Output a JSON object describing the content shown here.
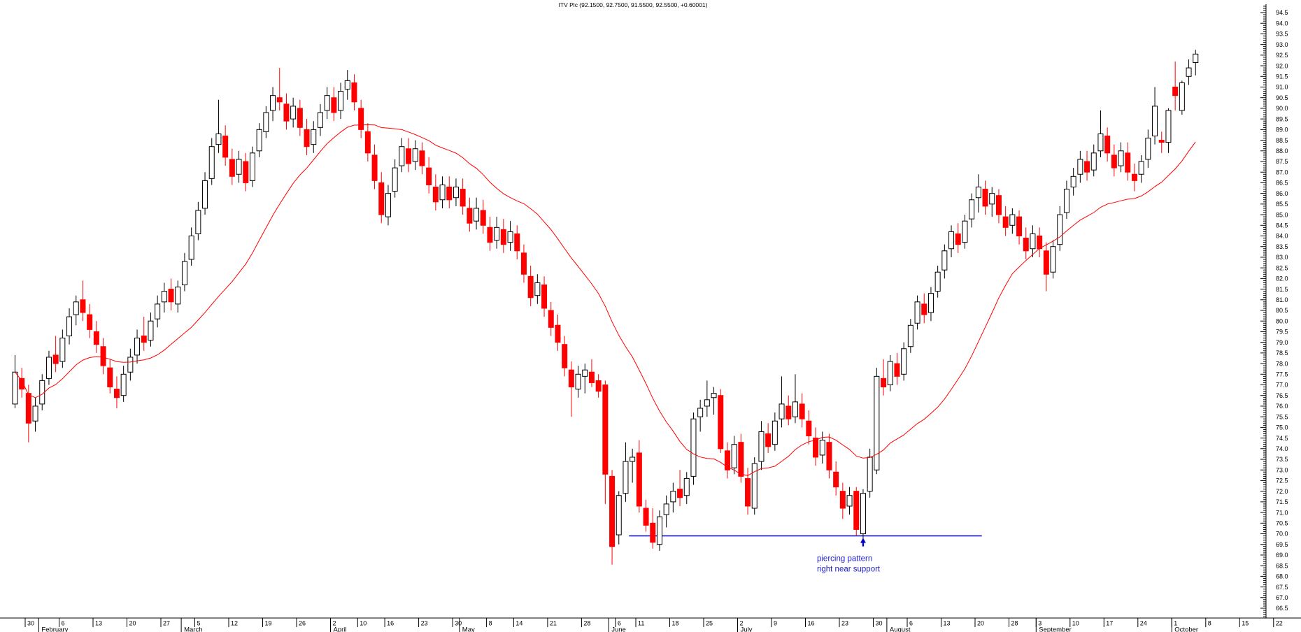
{
  "colors": {
    "background": "#ffffff",
    "up_candle_fill": "#ffffff",
    "up_candle_outline": "#000000",
    "down_candle": "#ff0000",
    "ma_line": "#ff0000",
    "support_line": "#0000c8",
    "annotation_text": "#2222cc",
    "axis": "#000000"
  },
  "chart_data": {
    "type": "candlestick",
    "title": "ITV Plc (92.1500, 92.7500, 91.5500, 92.5500, +0.60001)",
    "instrument": "ITV Plc",
    "last_quote": {
      "open": 92.15,
      "high": 92.75,
      "low": 91.55,
      "close": 92.55,
      "change": "+0.60001"
    },
    "grid": false,
    "y_axis": {
      "position": "right",
      "min": 66.5,
      "max": 94.5,
      "step": 0.5,
      "minor_step": 0.1
    },
    "x_axis": {
      "week_ticks": [
        {
          "label": "30",
          "index": 2
        },
        {
          "label": "6",
          "index": 7
        },
        {
          "label": "13",
          "index": 12
        },
        {
          "label": "20",
          "index": 17
        },
        {
          "label": "27",
          "index": 22
        },
        {
          "label": "5",
          "index": 27
        },
        {
          "label": "12",
          "index": 32
        },
        {
          "label": "19",
          "index": 37
        },
        {
          "label": "26",
          "index": 42
        },
        {
          "label": "2",
          "index": 47
        },
        {
          "label": "10",
          "index": 51
        },
        {
          "label": "16",
          "index": 55
        },
        {
          "label": "23",
          "index": 60
        },
        {
          "label": "30",
          "index": 65
        },
        {
          "label": "8",
          "index": 70
        },
        {
          "label": "14",
          "index": 74
        },
        {
          "label": "21",
          "index": 79
        },
        {
          "label": "28",
          "index": 84
        },
        {
          "label": "6",
          "index": 89
        },
        {
          "label": "11",
          "index": 92
        },
        {
          "label": "18",
          "index": 97
        },
        {
          "label": "25",
          "index": 102
        },
        {
          "label": "2",
          "index": 107
        },
        {
          "label": "9",
          "index": 112
        },
        {
          "label": "16",
          "index": 117
        },
        {
          "label": "23",
          "index": 122
        },
        {
          "label": "30",
          "index": 127
        },
        {
          "label": "6",
          "index": 132
        },
        {
          "label": "13",
          "index": 137
        },
        {
          "label": "20",
          "index": 142
        },
        {
          "label": "28",
          "index": 147
        },
        {
          "label": "3",
          "index": 151
        },
        {
          "label": "10",
          "index": 156
        },
        {
          "label": "17",
          "index": 161
        },
        {
          "label": "24",
          "index": 166
        },
        {
          "label": "1",
          "index": 171
        },
        {
          "label": "8",
          "index": 176
        },
        {
          "label": "15",
          "index": 181
        },
        {
          "label": "22",
          "index": 186
        }
      ],
      "months": [
        {
          "label": "February",
          "index": 4
        },
        {
          "label": "March",
          "index": 25
        },
        {
          "label": "April",
          "index": 47
        },
        {
          "label": "May",
          "index": 66
        },
        {
          "label": "June",
          "index": 88
        },
        {
          "label": "July",
          "index": 107
        },
        {
          "label": "August",
          "index": 129
        },
        {
          "label": "September",
          "index": 151
        },
        {
          "label": "October",
          "index": 171
        }
      ]
    },
    "series": [
      {
        "name": "ITV Plc daily OHLC",
        "type": "candlestick"
      },
      {
        "name": "moving average",
        "type": "line",
        "derived": "sma",
        "period": 21,
        "color": "#ff0000"
      }
    ],
    "annotations": {
      "support_line": {
        "price": 69.9,
        "start_index": 91,
        "end_index": 143,
        "color": "#0000c8"
      },
      "arrow": {
        "index": 125,
        "direction": "up",
        "color": "#0000c8"
      },
      "text": [
        "piercing pattern",
        "right near support"
      ],
      "text_start_index": 118.7
    },
    "candles": [
      [
        76.1,
        78.4,
        75.9,
        77.6
      ],
      [
        77.3,
        77.8,
        76.4,
        76.8
      ],
      [
        76.6,
        77.0,
        74.3,
        75.2
      ],
      [
        75.3,
        76.4,
        74.8,
        76.0
      ],
      [
        76.1,
        77.5,
        75.8,
        77.2
      ],
      [
        77.3,
        78.6,
        77.0,
        78.3
      ],
      [
        78.4,
        79.3,
        77.6,
        78.0
      ],
      [
        78.1,
        79.6,
        77.8,
        79.2
      ],
      [
        79.3,
        80.6,
        78.9,
        80.2
      ],
      [
        80.3,
        81.2,
        79.8,
        80.9
      ],
      [
        81.0,
        81.9,
        80.0,
        80.4
      ],
      [
        80.3,
        80.8,
        79.2,
        79.6
      ],
      [
        79.5,
        80.0,
        78.5,
        78.9
      ],
      [
        78.8,
        79.2,
        77.5,
        77.9
      ],
      [
        77.8,
        78.2,
        76.6,
        76.9
      ],
      [
        76.8,
        77.4,
        75.9,
        76.4
      ],
      [
        76.5,
        77.9,
        76.2,
        77.5
      ],
      [
        77.6,
        78.7,
        77.2,
        78.3
      ],
      [
        78.4,
        79.6,
        78.0,
        79.2
      ],
      [
        79.3,
        80.2,
        78.6,
        79.0
      ],
      [
        79.1,
        80.4,
        78.8,
        80.0
      ],
      [
        80.1,
        81.2,
        79.7,
        80.8
      ],
      [
        80.9,
        81.8,
        80.4,
        81.4
      ],
      [
        81.5,
        82.0,
        80.5,
        80.9
      ],
      [
        80.8,
        81.9,
        80.4,
        81.6
      ],
      [
        81.7,
        83.2,
        81.4,
        82.8
      ],
      [
        82.9,
        84.4,
        82.6,
        84.0
      ],
      [
        84.1,
        85.6,
        83.8,
        85.2
      ],
      [
        85.3,
        87.0,
        85.0,
        86.6
      ],
      [
        86.7,
        88.6,
        86.4,
        88.2
      ],
      [
        88.3,
        90.4,
        87.9,
        88.8
      ],
      [
        88.7,
        89.2,
        87.3,
        87.7
      ],
      [
        87.6,
        88.1,
        86.4,
        86.8
      ],
      [
        86.9,
        88.0,
        86.5,
        87.6
      ],
      [
        87.5,
        87.9,
        86.1,
        86.5
      ],
      [
        86.6,
        88.2,
        86.3,
        87.9
      ],
      [
        88.0,
        89.3,
        87.7,
        89.0
      ],
      [
        88.9,
        90.1,
        88.6,
        89.8
      ],
      [
        89.9,
        91.0,
        89.4,
        90.6
      ],
      [
        90.5,
        91.9,
        89.9,
        90.3
      ],
      [
        90.2,
        90.7,
        89.0,
        89.4
      ],
      [
        89.5,
        90.5,
        89.1,
        90.1
      ],
      [
        90.0,
        90.4,
        88.7,
        89.1
      ],
      [
        89.0,
        89.5,
        87.8,
        88.2
      ],
      [
        88.3,
        89.4,
        87.9,
        89.0
      ],
      [
        89.1,
        90.2,
        88.7,
        89.8
      ],
      [
        89.9,
        91.0,
        89.5,
        90.6
      ],
      [
        90.5,
        91.0,
        89.4,
        89.8
      ],
      [
        89.9,
        91.2,
        89.5,
        90.8
      ],
      [
        90.9,
        91.8,
        90.4,
        91.3
      ],
      [
        91.2,
        91.6,
        89.9,
        90.3
      ],
      [
        90.0,
        90.4,
        88.6,
        89.0
      ],
      [
        88.9,
        89.3,
        87.5,
        87.9
      ],
      [
        87.8,
        88.3,
        86.2,
        86.6
      ],
      [
        86.5,
        87.0,
        84.6,
        85.0
      ],
      [
        84.9,
        86.4,
        84.5,
        86.0
      ],
      [
        86.1,
        87.6,
        85.8,
        87.2
      ],
      [
        87.3,
        88.6,
        87.0,
        88.2
      ],
      [
        88.1,
        88.6,
        87.0,
        87.4
      ],
      [
        87.5,
        88.5,
        87.1,
        88.1
      ],
      [
        88.0,
        88.4,
        86.9,
        87.3
      ],
      [
        87.2,
        87.7,
        86.0,
        86.4
      ],
      [
        86.3,
        86.9,
        85.2,
        85.6
      ],
      [
        85.7,
        86.8,
        85.3,
        86.4
      ],
      [
        86.3,
        86.8,
        85.3,
        85.7
      ],
      [
        85.8,
        86.7,
        85.4,
        86.3
      ],
      [
        86.2,
        86.7,
        85.0,
        85.4
      ],
      [
        85.3,
        85.8,
        84.2,
        84.6
      ],
      [
        84.7,
        85.8,
        84.3,
        85.3
      ],
      [
        85.2,
        85.7,
        84.1,
        84.5
      ],
      [
        84.4,
        84.9,
        83.3,
        83.7
      ],
      [
        83.8,
        84.9,
        83.4,
        84.4
      ],
      [
        84.3,
        84.8,
        83.2,
        83.6
      ],
      [
        83.7,
        84.7,
        83.3,
        84.2
      ],
      [
        84.1,
        84.5,
        82.9,
        83.3
      ],
      [
        83.2,
        83.6,
        81.8,
        82.2
      ],
      [
        82.1,
        82.6,
        80.7,
        81.1
      ],
      [
        81.2,
        82.2,
        80.8,
        81.8
      ],
      [
        81.7,
        82.1,
        80.2,
        80.6
      ],
      [
        80.5,
        80.9,
        79.3,
        79.7
      ],
      [
        79.8,
        80.3,
        78.6,
        79.0
      ],
      [
        78.9,
        79.3,
        77.4,
        77.8
      ],
      [
        77.7,
        78.1,
        75.5,
        76.9
      ],
      [
        76.8,
        77.9,
        76.4,
        77.5
      ],
      [
        77.4,
        78.0,
        76.6,
        77.7
      ],
      [
        77.6,
        78.2,
        76.9,
        77.1
      ],
      [
        77.2,
        77.5,
        76.4,
        76.7
      ],
      [
        77.0,
        77.2,
        71.4,
        72.8
      ],
      [
        72.7,
        73.0,
        68.55,
        69.4
      ],
      [
        69.95,
        72.0,
        69.5,
        71.8
      ],
      [
        71.9,
        74.3,
        71.5,
        73.4
      ],
      [
        73.4,
        74.0,
        72.4,
        73.6
      ],
      [
        73.8,
        74.4,
        71.0,
        71.3
      ],
      [
        71.2,
        71.6,
        70.1,
        70.4
      ],
      [
        70.5,
        71.2,
        69.3,
        69.6
      ],
      [
        69.5,
        71.1,
        69.2,
        70.8
      ],
      [
        70.9,
        71.8,
        70.3,
        71.4
      ],
      [
        71.5,
        72.4,
        71.0,
        72.0
      ],
      [
        72.1,
        73.0,
        71.3,
        71.7
      ],
      [
        71.8,
        72.9,
        71.4,
        72.6
      ],
      [
        72.7,
        75.7,
        72.3,
        75.4
      ],
      [
        75.5,
        76.3,
        74.8,
        75.9
      ],
      [
        76.0,
        77.2,
        75.5,
        76.3
      ],
      [
        76.4,
        76.9,
        75.6,
        76.6
      ],
      [
        76.5,
        76.8,
        73.8,
        74.0
      ],
      [
        73.9,
        74.3,
        72.6,
        73.0
      ],
      [
        73.1,
        74.6,
        72.8,
        74.2
      ],
      [
        74.3,
        74.7,
        72.4,
        72.7
      ],
      [
        72.6,
        73.1,
        70.9,
        71.3
      ],
      [
        71.2,
        73.6,
        70.9,
        73.3
      ],
      [
        73.4,
        75.3,
        73.0,
        74.8
      ],
      [
        74.7,
        75.2,
        73.8,
        74.1
      ],
      [
        74.2,
        75.7,
        73.9,
        75.3
      ],
      [
        75.4,
        77.4,
        75.0,
        76.1
      ],
      [
        76.0,
        76.5,
        75.1,
        75.4
      ],
      [
        75.5,
        77.5,
        75.2,
        76.2
      ],
      [
        76.1,
        76.6,
        75.0,
        75.4
      ],
      [
        75.3,
        75.8,
        74.2,
        74.6
      ],
      [
        74.5,
        75.0,
        73.2,
        73.6
      ],
      [
        73.7,
        74.8,
        73.3,
        74.4
      ],
      [
        74.3,
        74.7,
        72.6,
        73.0
      ],
      [
        72.9,
        73.4,
        71.8,
        72.2
      ],
      [
        72.0,
        72.4,
        70.7,
        71.2
      ],
      [
        71.3,
        72.2,
        70.9,
        71.8
      ],
      [
        72.0,
        72.2,
        69.9,
        70.2
      ],
      [
        70.0,
        72.1,
        69.75,
        71.9
      ],
      [
        72.0,
        74.0,
        71.7,
        73.6
      ],
      [
        73.0,
        77.8,
        72.8,
        77.4
      ],
      [
        77.3,
        78.2,
        76.5,
        76.9
      ],
      [
        77.0,
        78.4,
        76.7,
        78.1
      ],
      [
        78.0,
        78.5,
        77.0,
        77.4
      ],
      [
        77.5,
        79.0,
        77.2,
        78.7
      ],
      [
        78.8,
        80.1,
        78.5,
        79.8
      ],
      [
        79.9,
        81.2,
        79.6,
        80.9
      ],
      [
        80.8,
        81.3,
        79.9,
        80.3
      ],
      [
        80.4,
        81.6,
        80.0,
        81.3
      ],
      [
        81.4,
        82.6,
        81.1,
        82.3
      ],
      [
        82.4,
        83.6,
        82.0,
        83.3
      ],
      [
        83.4,
        84.5,
        83.0,
        84.2
      ],
      [
        84.1,
        84.6,
        83.2,
        83.6
      ],
      [
        83.7,
        85.0,
        83.4,
        84.7
      ],
      [
        84.8,
        86.0,
        84.4,
        85.7
      ],
      [
        85.8,
        86.9,
        85.1,
        86.3
      ],
      [
        86.2,
        86.6,
        85.0,
        85.4
      ],
      [
        85.5,
        86.3,
        84.9,
        86.0
      ],
      [
        85.9,
        86.2,
        84.6,
        85.0
      ],
      [
        84.9,
        85.4,
        84.0,
        84.4
      ],
      [
        84.5,
        85.3,
        84.1,
        85.0
      ],
      [
        84.9,
        85.2,
        83.6,
        84.0
      ],
      [
        83.9,
        84.4,
        82.9,
        83.3
      ],
      [
        83.4,
        84.5,
        83.0,
        84.1
      ],
      [
        84.0,
        84.4,
        83.0,
        83.4
      ],
      [
        83.3,
        83.7,
        81.4,
        82.2
      ],
      [
        82.3,
        83.8,
        82.0,
        83.5
      ],
      [
        83.6,
        85.4,
        83.3,
        85.0
      ],
      [
        85.1,
        86.6,
        84.8,
        86.2
      ],
      [
        86.3,
        87.2,
        85.9,
        86.8
      ],
      [
        86.9,
        88.0,
        86.5,
        87.6
      ],
      [
        87.5,
        88.0,
        86.6,
        87.0
      ],
      [
        87.1,
        88.3,
        86.8,
        87.9
      ],
      [
        88.0,
        89.9,
        87.7,
        88.8
      ],
      [
        88.7,
        89.1,
        87.5,
        87.9
      ],
      [
        87.8,
        88.3,
        86.8,
        87.2
      ],
      [
        87.3,
        88.4,
        87.0,
        88.0
      ],
      [
        87.9,
        88.4,
        86.6,
        87.0
      ],
      [
        86.9,
        87.4,
        86.1,
        86.6
      ],
      [
        86.9,
        87.8,
        86.5,
        87.5
      ],
      [
        87.6,
        89.0,
        87.2,
        88.6
      ],
      [
        88.7,
        91.0,
        88.3,
        90.1
      ],
      [
        88.5,
        88.9,
        87.9,
        88.4
      ],
      [
        88.4,
        90.0,
        87.9,
        89.9
      ],
      [
        91.0,
        92.2,
        89.9,
        90.6
      ],
      [
        89.9,
        91.3,
        89.7,
        91.2
      ],
      [
        91.5,
        92.3,
        91.1,
        91.9
      ],
      [
        92.15,
        92.75,
        91.55,
        92.55
      ]
    ]
  }
}
